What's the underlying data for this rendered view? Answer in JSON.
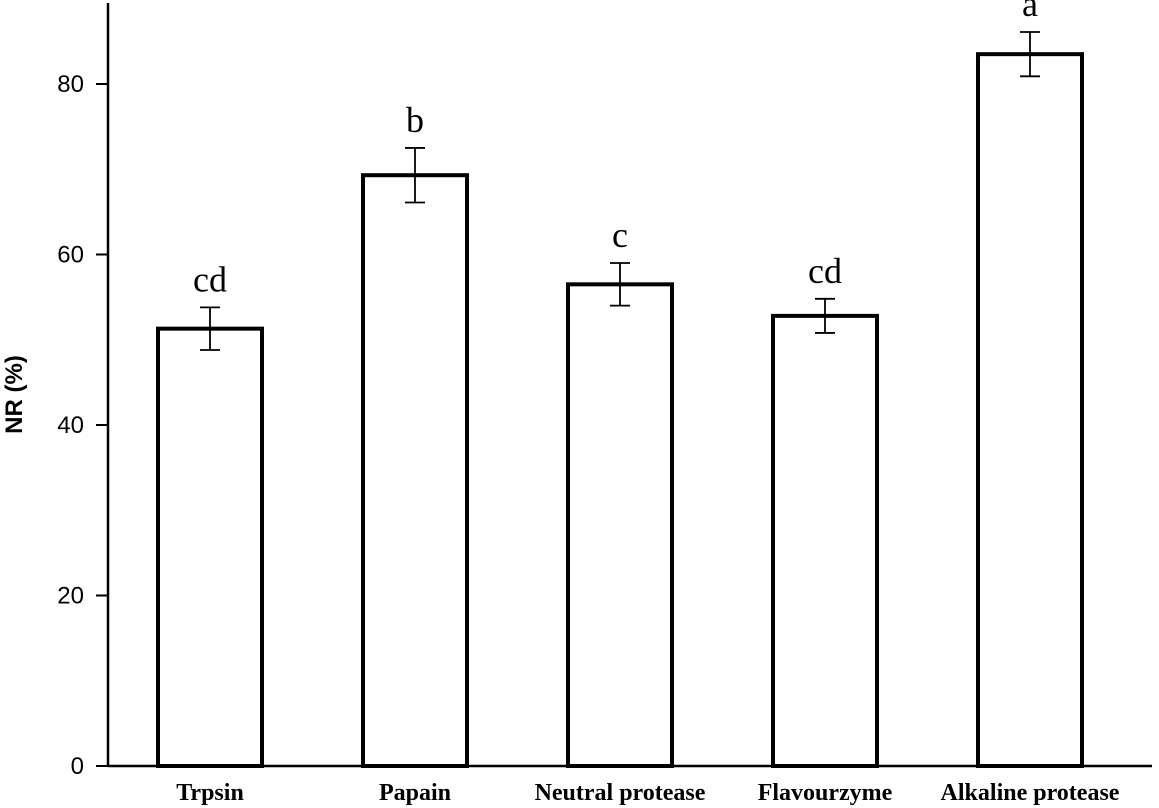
{
  "chart_data": {
    "type": "bar",
    "categories": [
      "Trpsin",
      "Papain",
      "Neutral protease",
      "Flavourzyme",
      "Alkaline protease"
    ],
    "values": [
      51.3,
      69.3,
      56.5,
      52.8,
      83.5
    ],
    "errors": [
      2.5,
      3.2,
      2.5,
      2.0,
      2.6
    ],
    "significance": [
      "cd",
      "b",
      "c",
      "cd",
      "a"
    ],
    "title": "",
    "xlabel": "",
    "ylabel": "NR (%)",
    "ylim": [
      0,
      89.5
    ],
    "yticks": [
      0,
      20,
      40,
      60,
      80
    ],
    "grid": false
  }
}
